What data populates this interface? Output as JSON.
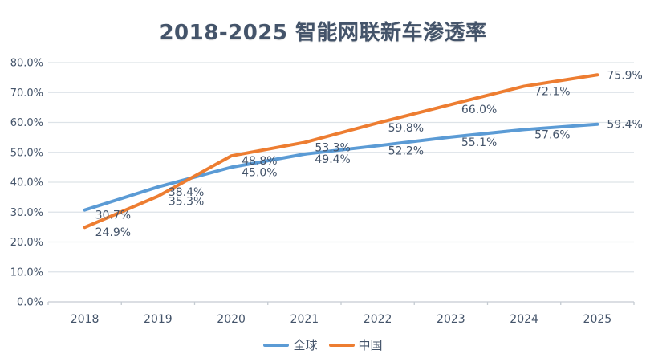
{
  "chart_data": {
    "type": "line",
    "title": "2018-2025 智能网联新车渗透率",
    "categories": [
      "2018",
      "2019",
      "2020",
      "2021",
      "2022",
      "2023",
      "2024",
      "2025"
    ],
    "series": [
      {
        "name": "全球",
        "color": "#5B9BD5",
        "values": [
          30.7,
          38.4,
          45.0,
          49.4,
          52.2,
          55.1,
          57.6,
          59.4
        ]
      },
      {
        "name": "中国",
        "color": "#ED7D31",
        "values": [
          24.9,
          35.3,
          48.8,
          53.3,
          59.8,
          66.0,
          72.1,
          75.9
        ]
      }
    ],
    "ylim": [
      0,
      80
    ],
    "y_tick_step": 10,
    "y_tick_labels": [
      "0.0%",
      "10.0%",
      "20.0%",
      "30.0%",
      "40.0%",
      "50.0%",
      "60.0%",
      "70.0%",
      "80.0%"
    ],
    "data_label_format": "one-decimal-percent",
    "grid": true,
    "legend_position": "bottom",
    "colors": {
      "text": "#44546A",
      "grid": "#DDE3E8",
      "axis": "#C5CBD2",
      "background": "#FFFFFF"
    }
  }
}
